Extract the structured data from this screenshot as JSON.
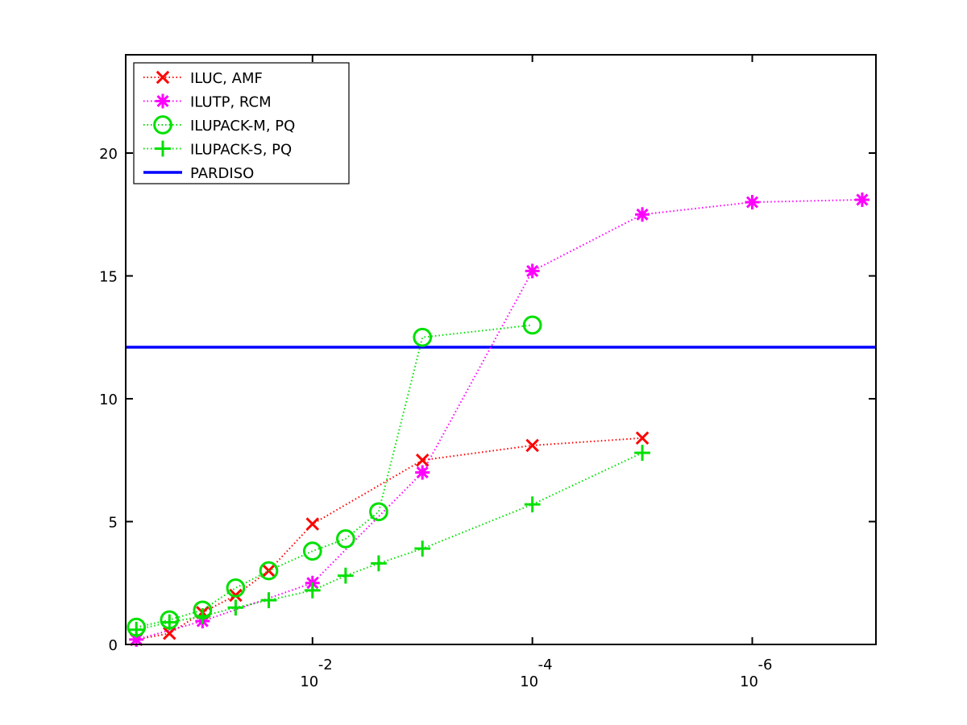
{
  "chart_data": {
    "type": "line",
    "title": "",
    "xlabel": "",
    "ylabel": "",
    "x_scale": "log (reversed)",
    "xlim": [
      0.5,
      7.5e-08
    ],
    "ylim": [
      0,
      24
    ],
    "grid": false,
    "legend_position": "top-left",
    "x_ticks": [
      {
        "value": 0.01,
        "base": "10",
        "exp": "-2"
      },
      {
        "value": 0.0001,
        "base": "10",
        "exp": "-4"
      },
      {
        "value": 1e-06,
        "base": "10",
        "exp": "-6"
      }
    ],
    "y_ticks": [
      0,
      5,
      10,
      15,
      20
    ],
    "series": [
      {
        "name": "ILUC, AMF",
        "color": "#ff0000",
        "marker": "x",
        "line": "dotted",
        "points": [
          [
            0.4,
            0.2
          ],
          [
            0.2,
            0.45
          ],
          [
            0.1,
            1.3
          ],
          [
            0.05,
            2.0
          ],
          [
            0.025,
            3.0
          ],
          [
            0.01,
            4.9
          ],
          [
            0.001,
            7.5
          ],
          [
            0.0001,
            8.1
          ],
          [
            1e-05,
            8.4
          ]
        ]
      },
      {
        "name": "ILUTP, RCM",
        "color": "#ff00ff",
        "marker": "star",
        "line": "dotted",
        "points": [
          [
            0.4,
            0.2
          ],
          [
            0.1,
            0.95
          ],
          [
            0.01,
            2.5
          ],
          [
            0.001,
            7.0
          ],
          [
            0.0001,
            15.2
          ],
          [
            1e-05,
            17.5
          ],
          [
            1e-06,
            18.0
          ],
          [
            1e-07,
            18.1
          ]
        ]
      },
      {
        "name": "ILUPACK-M, PQ",
        "color": "#00e000",
        "marker": "circle",
        "line": "dotted",
        "points": [
          [
            0.4,
            0.7
          ],
          [
            0.2,
            1.0
          ],
          [
            0.1,
            1.4
          ],
          [
            0.05,
            2.3
          ],
          [
            0.025,
            3.0
          ],
          [
            0.01,
            3.8
          ],
          [
            0.005,
            4.3
          ],
          [
            0.0025,
            5.4
          ],
          [
            0.001,
            12.5
          ],
          [
            0.0001,
            13.0
          ]
        ]
      },
      {
        "name": "ILUPACK-S, PQ",
        "color": "#00e000",
        "marker": "plus",
        "line": "dotted",
        "points": [
          [
            0.4,
            0.6
          ],
          [
            0.2,
            0.9
          ],
          [
            0.1,
            1.15
          ],
          [
            0.05,
            1.5
          ],
          [
            0.025,
            1.8
          ],
          [
            0.01,
            2.2
          ],
          [
            0.005,
            2.8
          ],
          [
            0.0025,
            3.3
          ],
          [
            0.001,
            3.9
          ],
          [
            0.0001,
            5.7
          ],
          [
            1e-05,
            7.8
          ]
        ]
      },
      {
        "name": "PARDISO",
        "color": "#0000ff",
        "marker": "none",
        "line": "solid",
        "points": [
          [
            0.5,
            12.1
          ],
          [
            7.5e-08,
            12.1
          ]
        ]
      }
    ]
  }
}
